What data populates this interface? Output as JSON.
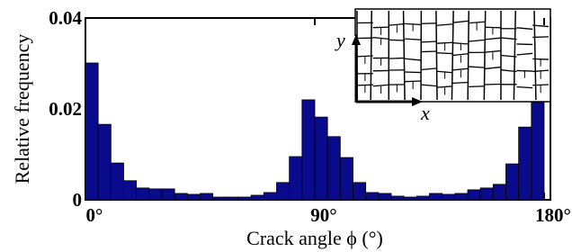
{
  "chart_data": {
    "type": "histogram",
    "xlabel": "Crack angle ϕ (°)",
    "ylabel": "Relative frequency",
    "annotations": [
      "y",
      "x"
    ],
    "color": "#0a0a8c",
    "bins": [
      0,
      5,
      10,
      15,
      20,
      25,
      30,
      35,
      40,
      45,
      50,
      55,
      60,
      65,
      70,
      75,
      80,
      85,
      90,
      95,
      100,
      105,
      110,
      115,
      120,
      125,
      130,
      135,
      140,
      145,
      150,
      155,
      160,
      165,
      170,
      175,
      180
    ],
    "values": [
      0.0301,
      0.0166,
      0.0081,
      0.0042,
      0.0026,
      0.0024,
      0.0024,
      0.0014,
      0.0012,
      0.0014,
      0.0006,
      0.0006,
      0.0006,
      0.001,
      0.0016,
      0.0038,
      0.0095,
      0.022,
      0.0182,
      0.0139,
      0.0093,
      0.0038,
      0.0016,
      0.0014,
      0.0008,
      0.0006,
      0.0008,
      0.0014,
      0.0012,
      0.0014,
      0.0022,
      0.0026,
      0.0034,
      0.0079,
      0.016,
      0.0214
    ],
    "xlim": [
      0,
      180
    ],
    "xticks": [
      {
        "value": 0,
        "label": "0°"
      },
      {
        "value": 90,
        "label": "90°"
      },
      {
        "value": 180,
        "label": "180°"
      }
    ],
    "ylim": [
      0,
      0.04
    ],
    "yticks": [
      0,
      0.02,
      0.04
    ]
  }
}
